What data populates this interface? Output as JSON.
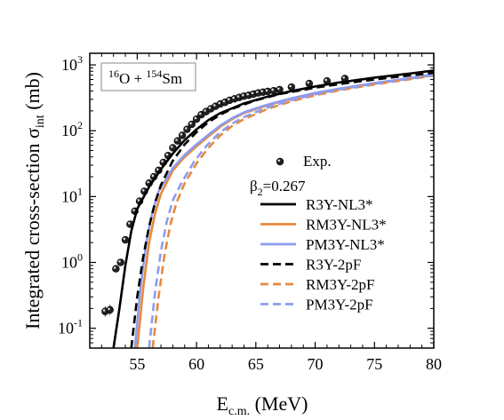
{
  "chart_data": {
    "type": "line",
    "xlabel_main": "E",
    "xlabel_sub": "c.m.",
    "xlabel_unit": " (MeV)",
    "ylabel_main": "Integrated cross-section σ",
    "ylabel_sub": "int",
    "ylabel_unit": " (mb)",
    "xlim": [
      51,
      80
    ],
    "ylim": [
      0.05,
      1500
    ],
    "yscale": "log",
    "x_ticks": [
      55,
      60,
      65,
      70,
      75,
      80
    ],
    "x_tick_labels": [
      "55",
      "60",
      "65",
      "70",
      "75",
      "80"
    ],
    "y_ticks": [
      0.1,
      1,
      10,
      100,
      1000
    ],
    "y_tick_labels": [
      {
        "base": "10",
        "exp": "-1"
      },
      {
        "base": "10",
        "exp": "0"
      },
      {
        "base": "10",
        "exp": "1"
      },
      {
        "base": "10",
        "exp": "2"
      },
      {
        "base": "10",
        "exp": "3"
      }
    ],
    "annotation": {
      "box": true,
      "parts": [
        {
          "text": "16",
          "sup": true
        },
        {
          "text": "O + ",
          "sup": false
        },
        {
          "text": "154",
          "sup": true
        },
        {
          "text": "Sm",
          "sup": false
        }
      ]
    },
    "legend_note": {
      "main": "β",
      "sub": "2",
      "rest": "=0.267"
    },
    "legend_position": "center-right",
    "series": [
      {
        "name": "Exp.",
        "style": "markers",
        "color": "#222222",
        "x": [
          52.3,
          52.7,
          53.2,
          53.6,
          54.0,
          54.4,
          54.8,
          55.2,
          55.6,
          56.0,
          56.4,
          56.8,
          57.2,
          57.6,
          58.0,
          58.4,
          58.8,
          59.2,
          59.6,
          60.0,
          60.4,
          60.8,
          61.2,
          61.6,
          62.0,
          62.4,
          62.8,
          63.2,
          63.6,
          64.0,
          64.4,
          64.8,
          65.2,
          65.6,
          66.0,
          66.5,
          67.0,
          68.0,
          69.5,
          71.0,
          72.5
        ],
        "y": [
          0.18,
          0.19,
          0.8,
          1.0,
          2.2,
          3.8,
          6.0,
          8.5,
          12,
          16,
          20,
          25,
          33,
          42,
          55,
          70,
          85,
          105,
          125,
          150,
          175,
          195,
          215,
          235,
          255,
          270,
          290,
          305,
          320,
          335,
          345,
          360,
          375,
          385,
          395,
          405,
          420,
          460,
          520,
          570,
          620
        ]
      },
      {
        "name": "R3Y-NL3*",
        "style": "solid",
        "color": "#000000",
        "x": [
          53.0,
          53.5,
          54.0,
          54.5,
          55.0,
          56.0,
          57.0,
          58.0,
          59.0,
          60.0,
          61.0,
          62.0,
          64.0,
          66.0,
          68.0,
          70.0,
          72.0,
          75.0,
          78.0,
          80.0
        ],
        "y": [
          0.05,
          0.2,
          0.9,
          3.0,
          6.5,
          14,
          26,
          45,
          72,
          105,
          145,
          185,
          260,
          330,
          400,
          470,
          540,
          640,
          740,
          820
        ]
      },
      {
        "name": "RM3Y-NL3*",
        "style": "solid",
        "color": "#e8893a",
        "x": [
          55.0,
          55.5,
          56.0,
          56.5,
          57.0,
          58.0,
          59.0,
          60.0,
          61.0,
          62.0,
          63.0,
          64.0,
          66.0,
          68.0,
          70.0,
          72.0,
          75.0,
          78.0,
          80.0
        ],
        "y": [
          0.05,
          0.4,
          2.0,
          5.5,
          11,
          25,
          40,
          58,
          82,
          115,
          150,
          185,
          245,
          305,
          370,
          430,
          525,
          625,
          710
        ]
      },
      {
        "name": "PM3Y-NL3*",
        "style": "solid",
        "color": "#8c9cf0",
        "x": [
          54.8,
          55.3,
          55.8,
          56.3,
          56.8,
          58.0,
          59.0,
          60.0,
          61.0,
          62.0,
          63.0,
          64.0,
          66.0,
          68.0,
          70.0,
          72.0,
          75.0,
          78.0,
          80.0
        ],
        "y": [
          0.05,
          0.45,
          2.2,
          6.0,
          12,
          27,
          43,
          62,
          87,
          120,
          155,
          190,
          250,
          310,
          375,
          435,
          530,
          630,
          715
        ]
      },
      {
        "name": "R3Y-2pF",
        "style": "dashed",
        "color": "#000000",
        "x": [
          54.5,
          55.0,
          55.5,
          56.0,
          56.5,
          57.0,
          58.0,
          59.0,
          60.0,
          61.0,
          62.0,
          63.0,
          65.0,
          67.0,
          70.0,
          73.0,
          76.0,
          80.0
        ],
        "y": [
          0.05,
          0.3,
          1.2,
          3.5,
          8.0,
          15,
          35,
          62,
          95,
          135,
          175,
          215,
          290,
          360,
          450,
          540,
          630,
          760
        ]
      },
      {
        "name": "RM3Y-2pF",
        "style": "dashed",
        "color": "#e8893a",
        "x": [
          56.3,
          56.8,
          57.3,
          57.8,
          58.3,
          59.0,
          60.0,
          61.0,
          62.0,
          63.0,
          64.0,
          66.0,
          68.0,
          70.0,
          72.0,
          75.0,
          78.0,
          80.0
        ],
        "y": [
          0.05,
          0.3,
          1.3,
          3.8,
          8.0,
          16,
          32,
          55,
          85,
          118,
          150,
          215,
          280,
          345,
          410,
          505,
          605,
          690
        ]
      },
      {
        "name": "PM3Y-2pF",
        "style": "dashed",
        "color": "#8c9cf0",
        "x": [
          56.0,
          56.5,
          57.0,
          57.5,
          58.0,
          58.8,
          59.8,
          60.8,
          61.8,
          62.8,
          63.8,
          65.8,
          67.8,
          69.8,
          71.8,
          74.8,
          77.8,
          80.0
        ],
        "y": [
          0.05,
          0.35,
          1.5,
          4.2,
          8.8,
          17,
          34,
          58,
          88,
          122,
          155,
          220,
          285,
          350,
          415,
          510,
          610,
          700
        ]
      }
    ]
  }
}
